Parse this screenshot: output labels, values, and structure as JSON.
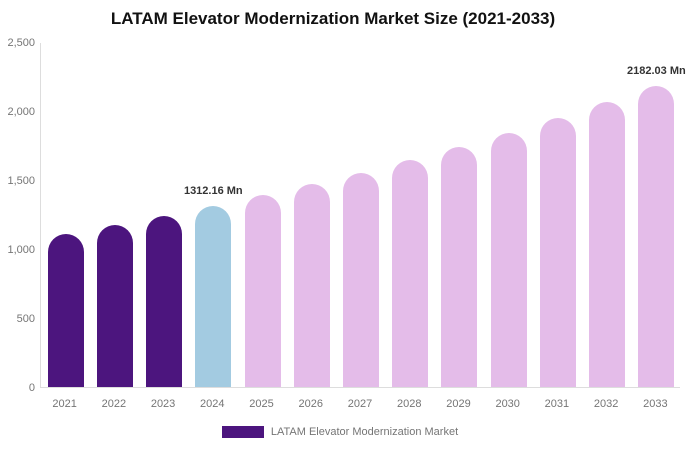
{
  "title": "LATAM Elevator Modernization Market Size (2021-2033)",
  "legend": {
    "label": "LATAM Elevator Modernization Market",
    "swatch_color": "#4C157E"
  },
  "colors": {
    "historical": "#4C157E",
    "base_year": "#A3CBE1",
    "forecast": "#E4BCE9",
    "axis_line": "#dddddd",
    "tick_text": "#757575",
    "label_text": "#333333"
  },
  "chart_data": {
    "type": "bar",
    "title": "LATAM Elevator Modernization Market Size (2021-2033)",
    "categories": [
      "2021",
      "2022",
      "2023",
      "2024",
      "2025",
      "2026",
      "2027",
      "2028",
      "2029",
      "2030",
      "2031",
      "2032",
      "2033"
    ],
    "values": [
      1107,
      1172,
      1240,
      1312.16,
      1388,
      1469,
      1554,
      1645,
      1740,
      1841,
      1948,
      2062,
      2182.03
    ],
    "series_name": "LATAM Elevator Modernization Market",
    "bar_roles": [
      "historical",
      "historical",
      "historical",
      "base_year",
      "forecast",
      "forecast",
      "forecast",
      "forecast",
      "forecast",
      "forecast",
      "forecast",
      "forecast",
      "forecast"
    ],
    "data_labels": {
      "2024": "1312.16 Mn",
      "2033": "2182.03 Mn"
    },
    "unit": "Mn",
    "xlabel": "",
    "ylabel": "",
    "ylim": [
      0,
      2500
    ],
    "yticks": [
      {
        "label": "0",
        "value": 0
      },
      {
        "label": "500",
        "value": 500
      },
      {
        "label": "1,000",
        "value": 1000
      },
      {
        "label": "1,500",
        "value": 1500
      },
      {
        "label": "2,000",
        "value": 2000
      },
      {
        "label": "2,500",
        "value": 2500
      }
    ],
    "grid": false,
    "legend_position": "bottom"
  }
}
